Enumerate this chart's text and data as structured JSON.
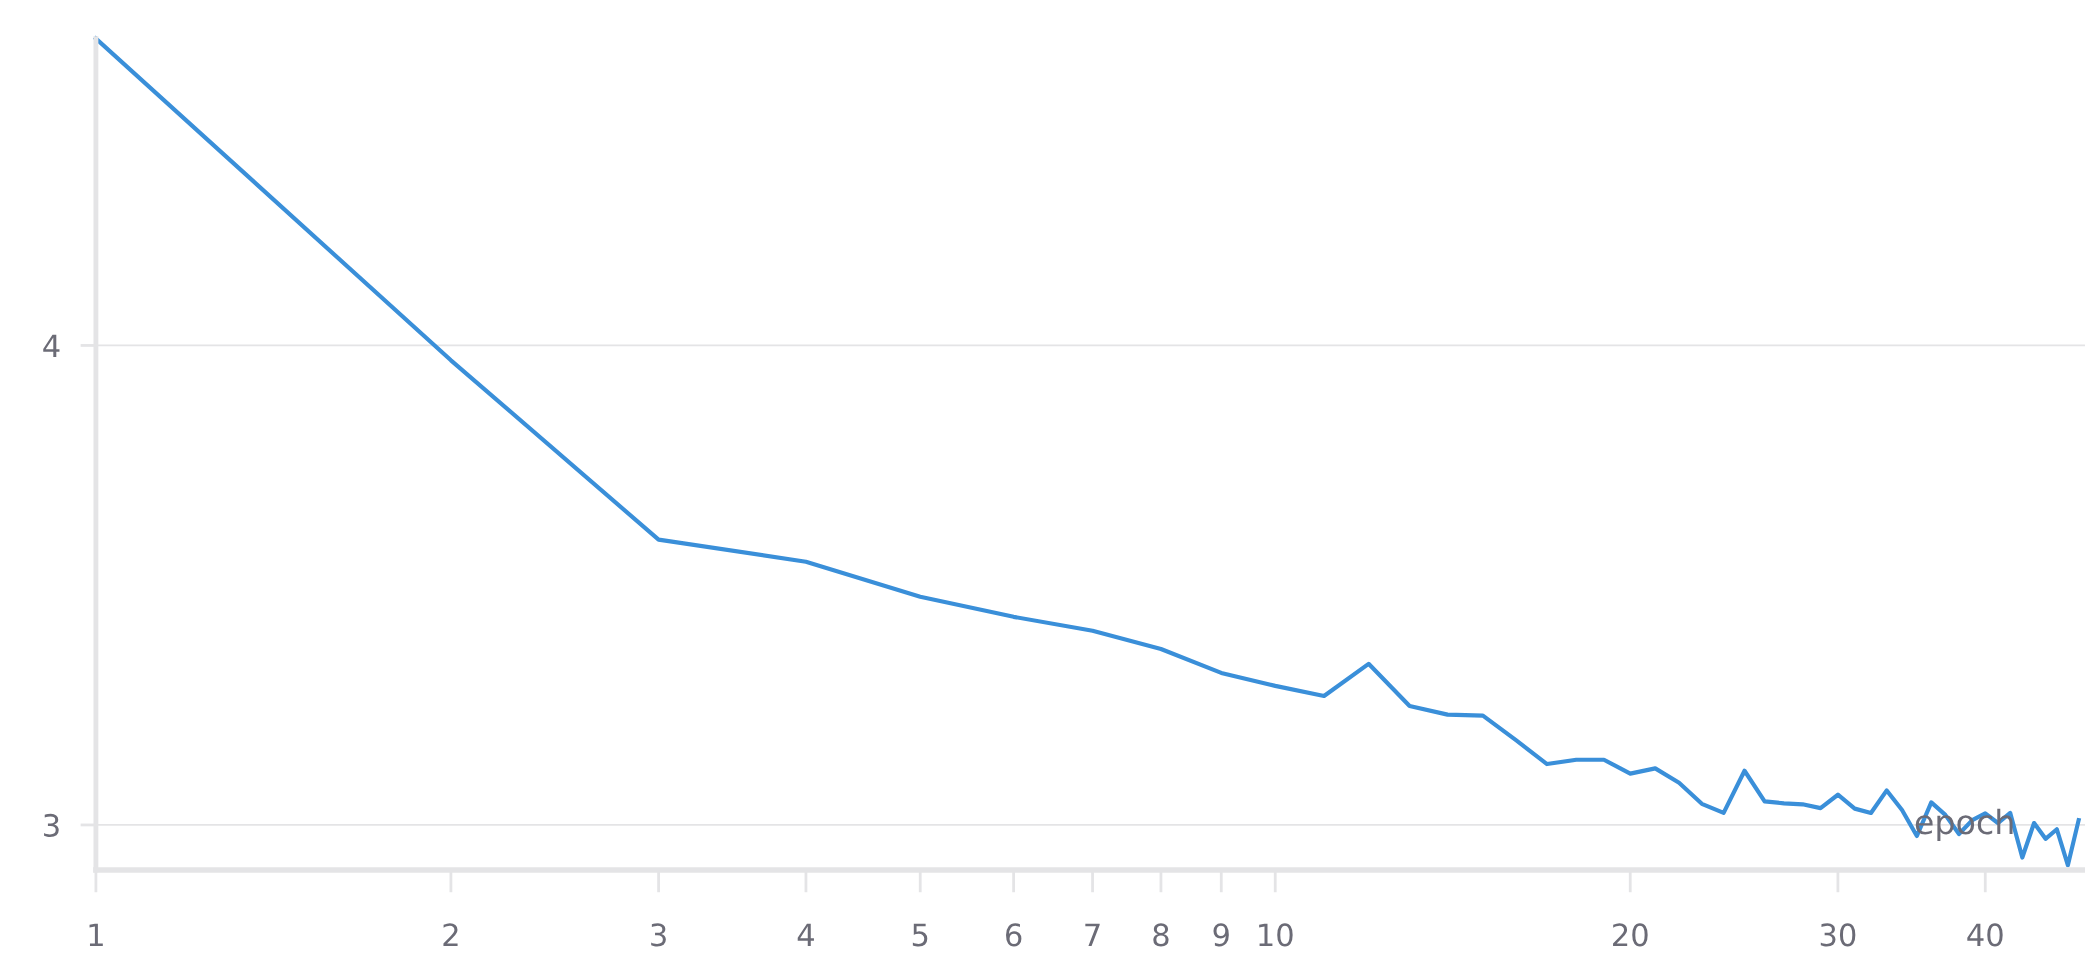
{
  "chart_data": {
    "type": "line",
    "xlabel": "epoch",
    "log": "x",
    "grid": "y",
    "marker": "none",
    "line_style": "solid",
    "xlim": [
      1,
      48.6
    ],
    "ylim": [
      2.906,
      4.64
    ],
    "xticks": [
      1,
      2,
      3,
      4,
      5,
      6,
      7,
      8,
      9,
      10,
      20,
      30,
      40
    ],
    "yticks": [
      3,
      4
    ],
    "x": [
      1,
      2,
      3,
      4,
      5,
      6,
      7,
      8,
      9,
      10,
      11,
      12,
      13,
      14,
      15,
      16,
      17,
      18,
      19,
      20,
      21,
      22,
      23,
      24,
      25,
      26,
      27,
      28,
      29,
      30,
      31,
      32,
      33,
      34,
      35,
      36,
      37,
      38,
      39,
      40,
      41,
      42,
      43,
      44,
      45,
      46,
      47,
      48
    ],
    "series": [
      {
        "color": "#3a8fd9",
        "values": [
          4.64,
          3.969,
          3.595,
          3.549,
          3.476,
          3.434,
          3.405,
          3.367,
          3.317,
          3.29,
          3.269,
          3.336,
          3.248,
          3.23,
          3.228,
          3.177,
          3.127,
          3.136,
          3.136,
          3.107,
          3.118,
          3.088,
          3.044,
          3.025,
          3.113,
          3.049,
          3.045,
          3.043,
          3.035,
          3.063,
          3.034,
          3.025,
          3.072,
          3.031,
          2.977,
          3.047,
          3.021,
          2.981,
          3.01,
          3.024,
          3.004,
          3.025,
          2.932,
          3.004,
          2.971,
          2.991,
          2.916,
          3.01
        ]
      }
    ]
  }
}
